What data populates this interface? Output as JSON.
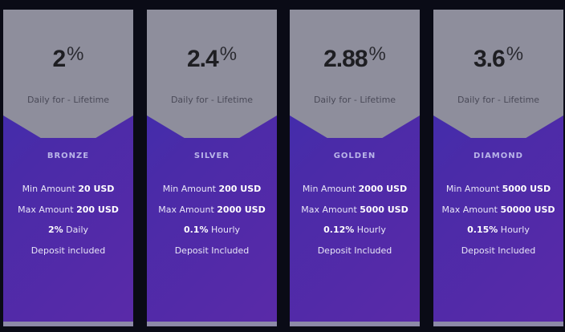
{
  "colors": {
    "card_top": "#8e8e9c",
    "card_gradient_start": "#3a2fb0",
    "card_gradient_end": "#5a2aa8",
    "plan_name": "#b9b5e8",
    "rate_text": "#1e1e22"
  },
  "plans": [
    {
      "rate": "2",
      "percent_sign": "%",
      "period": "Daily for - Lifetime",
      "name": "BRONZE",
      "min_label": "Min Amount",
      "min_value": "20 USD",
      "max_label": "Max Amount",
      "max_value": "200 USD",
      "profit_value": "2%",
      "profit_unit": "Daily",
      "deposit": "Deposit included"
    },
    {
      "rate": "2.4",
      "percent_sign": "%",
      "period": "Daily for - Lifetime",
      "name": "SILVER",
      "min_label": "Min Amount",
      "min_value": "200 USD",
      "max_label": "Max Amount",
      "max_value": "2000 USD",
      "profit_value": "0.1%",
      "profit_unit": "Hourly",
      "deposit": "Deposit Included"
    },
    {
      "rate": "2.88",
      "percent_sign": "%",
      "period": "Daily for - Lifetime",
      "name": "GOLDEN",
      "min_label": "Min Amount",
      "min_value": "2000 USD",
      "max_label": "Max Amount",
      "max_value": "5000 USD",
      "profit_value": "0.12%",
      "profit_unit": "Hourly",
      "deposit": "Deposit Included"
    },
    {
      "rate": "3.6",
      "percent_sign": "%",
      "period": "Daily for - Lifetime",
      "name": "DIAMOND",
      "min_label": "Min Amount",
      "min_value": "5000 USD",
      "max_label": "Max Amount",
      "max_value": "50000 USD",
      "profit_value": "0.15%",
      "profit_unit": "Hourly",
      "deposit": "Deposit Included"
    }
  ]
}
